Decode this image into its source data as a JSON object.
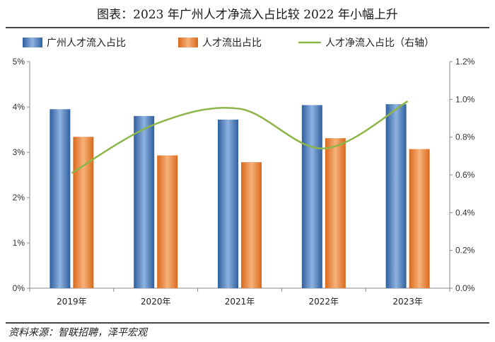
{
  "title": "图表：2023 年广州人才净流入占比较 2022 年小幅上升",
  "source": "资料来源：智联招聘，泽平宏观",
  "colors": {
    "inflow": "#4a7cc0",
    "outflow": "#ef8a3c",
    "net": "#8cb54a"
  },
  "chart_data": {
    "type": "bar",
    "categories": [
      "2019年",
      "2020年",
      "2021年",
      "2022年",
      "2023年"
    ],
    "series": [
      {
        "name": "广州人才流入占比",
        "type": "bar",
        "axis": "left",
        "values": [
          3.95,
          3.8,
          3.72,
          4.04,
          4.06
        ]
      },
      {
        "name": "人才流出占比",
        "type": "bar",
        "axis": "left",
        "values": [
          3.34,
          2.93,
          2.78,
          3.31,
          3.07
        ]
      },
      {
        "name": "人才净流入占比（右轴）",
        "type": "line",
        "axis": "right",
        "values": [
          0.61,
          0.87,
          0.95,
          0.74,
          0.99
        ]
      }
    ],
    "ylim": [
      0,
      5
    ],
    "yticks": [
      "0%",
      "1%",
      "2%",
      "3%",
      "4%",
      "5%"
    ],
    "y2lim": [
      0,
      1.2
    ],
    "y2ticks": [
      "0.0%",
      "0.2%",
      "0.4%",
      "0.6%",
      "0.8%",
      "1.0%",
      "1.2%"
    ],
    "legend": "top",
    "grid": false
  }
}
